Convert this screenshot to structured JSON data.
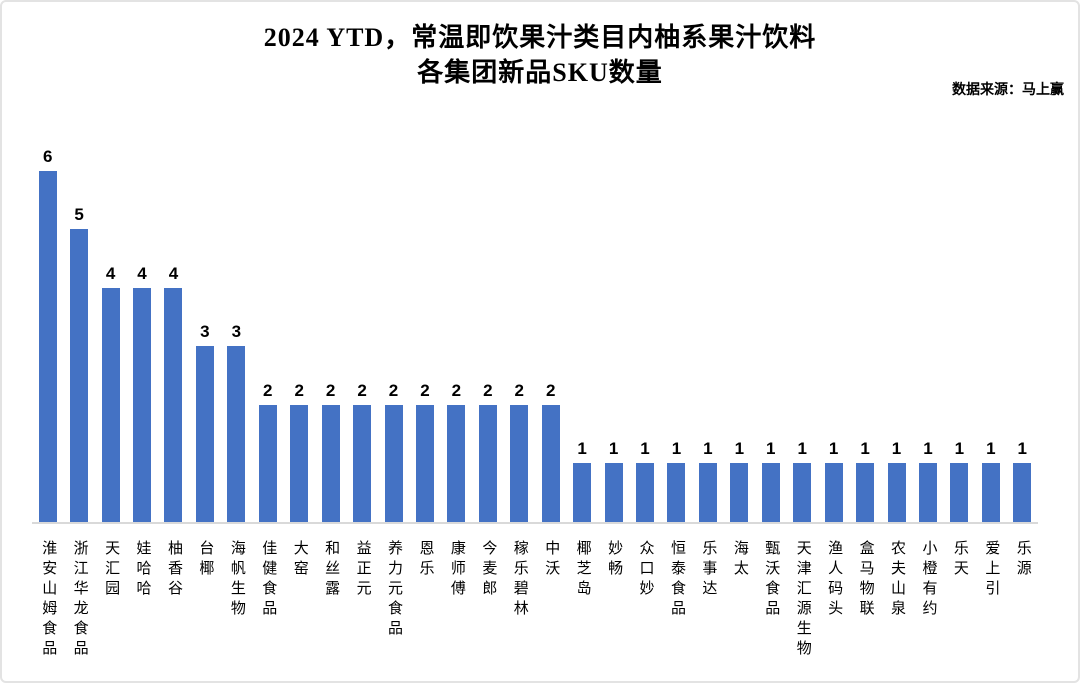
{
  "title": {
    "line1": "2024 YTD，常温即饮果汁类目内柚系果汁饮料",
    "line2": "各集团新品SKU数量"
  },
  "source_note": "数据来源：马上赢",
  "chart_data": {
    "type": "bar",
    "title": "2024 YTD，常温即饮果汁类目内柚系果汁饮料 各集团新品SKU数量",
    "xlabel": "",
    "ylabel": "",
    "ylim": [
      0,
      6
    ],
    "grid": false,
    "legend": false,
    "data_labels": true,
    "category_label_orientation": "vertical",
    "bar_color": "#4472C4",
    "axis_line_color": "#d9d9d9",
    "categories": [
      "淮安山姆食品",
      "浙江华龙食品",
      "天汇园",
      "娃哈哈",
      "柚香谷",
      "台椰",
      "海帆生物",
      "佳健食品",
      "大窑",
      "和丝露",
      "益正元",
      "养力元食品",
      "恩乐",
      "康师傅",
      "今麦郎",
      "稼乐碧林",
      "中沃",
      "椰芝岛",
      "妙畅",
      "众口妙",
      "恒泰食品",
      "乐事达",
      "海太",
      "甄沃食品",
      "天津汇源生物",
      "渔人码头",
      "盒马物联",
      "农夫山泉",
      "小橙有约",
      "乐天",
      "爱上引",
      "乐源"
    ],
    "values": [
      6,
      5,
      4,
      4,
      4,
      3,
      3,
      2,
      2,
      2,
      2,
      2,
      2,
      2,
      2,
      2,
      2,
      1,
      1,
      1,
      1,
      1,
      1,
      1,
      1,
      1,
      1,
      1,
      1,
      1,
      1,
      1
    ]
  }
}
